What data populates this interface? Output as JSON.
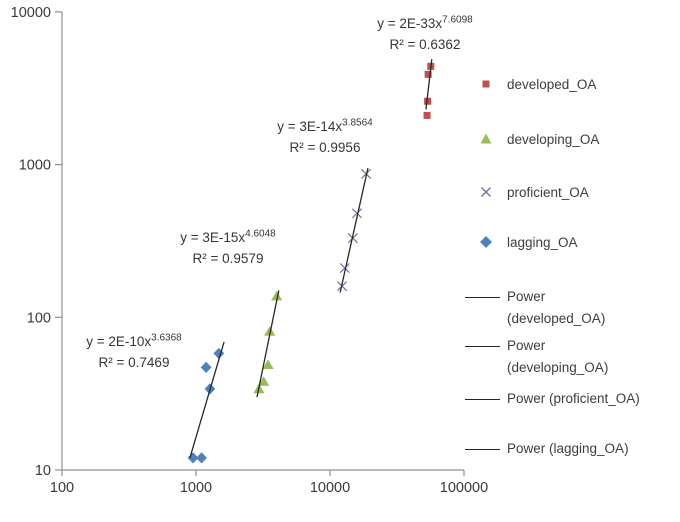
{
  "chart_data": {
    "type": "scatter",
    "title": "",
    "xlabel": "",
    "ylabel": "",
    "x_scale": "log",
    "y_scale": "log",
    "xlim": [
      100,
      100000
    ],
    "ylim": [
      10,
      10000
    ],
    "x_ticks": [
      "100",
      "1000",
      "10000",
      "100000"
    ],
    "y_ticks": [
      "10",
      "100",
      "1000",
      "10000"
    ],
    "grid": false,
    "legend_position": "right",
    "series": [
      {
        "name": "developed_OA",
        "marker": "square",
        "color": "#C0504D",
        "points": [
          [
            53000,
            2100
          ],
          [
            53500,
            2600
          ],
          [
            54000,
            3900
          ],
          [
            56500,
            4400
          ]
        ],
        "trendline_points": [
          [
            52000,
            2300
          ],
          [
            57500,
            4900
          ]
        ],
        "eq_prefix": "y = 2E-33x",
        "exponent": "7.6098",
        "r2": "R² = 0.6362"
      },
      {
        "name": "developing_OA",
        "marker": "triangle",
        "color": "#9BBB59",
        "points": [
          [
            2950,
            34
          ],
          [
            3200,
            38
          ],
          [
            3450,
            49
          ],
          [
            3550,
            81
          ],
          [
            4000,
            138
          ]
        ],
        "trendline_points": [
          [
            2850,
            30
          ],
          [
            4150,
            150
          ]
        ],
        "eq_prefix": "y = 3E-15x",
        "exponent": "4.6048",
        "r2": "R² = 0.9579"
      },
      {
        "name": "proficient_OA",
        "marker": "x",
        "color": "#8064A2",
        "points": [
          [
            12300,
            160
          ],
          [
            12900,
            210
          ],
          [
            14800,
            330
          ],
          [
            15900,
            480
          ],
          [
            18600,
            870
          ]
        ],
        "trendline_points": [
          [
            11900,
            145
          ],
          [
            19200,
            950
          ]
        ],
        "eq_prefix": "y = 3E-14x",
        "exponent": "3.8564",
        "r2": "R² = 0.9956"
      },
      {
        "name": "lagging_OA",
        "marker": "diamond",
        "color": "#4F81BD",
        "points": [
          [
            950,
            12
          ],
          [
            1100,
            12
          ],
          [
            1190,
            47
          ],
          [
            1270,
            34
          ],
          [
            1480,
            58
          ]
        ],
        "trendline_points": [
          [
            900,
            12
          ],
          [
            1620,
            69
          ]
        ],
        "eq_prefix": "y = 2E-10x",
        "exponent": "3.6368",
        "r2": "R² = 0.7469"
      }
    ],
    "trendline_color": "#262626"
  },
  "legend": {
    "power_items": [
      {
        "lines": [
          "Power",
          "(developed_OA)"
        ]
      },
      {
        "lines": [
          "Power",
          "(developing_OA)"
        ]
      },
      {
        "lines": [
          "Power (proficient_OA)"
        ]
      },
      {
        "lines": [
          "Power (lagging_OA)"
        ]
      }
    ]
  }
}
